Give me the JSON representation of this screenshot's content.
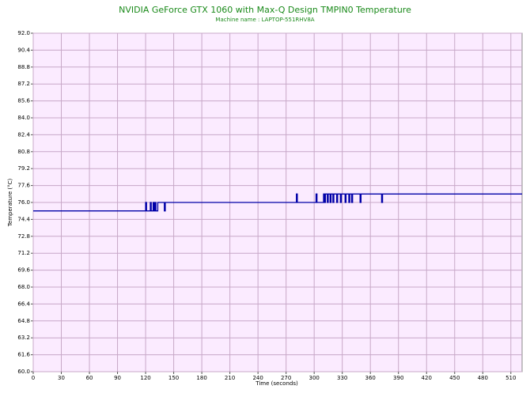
{
  "chart_data": {
    "type": "line",
    "title": "NVIDIA GeForce GTX 1060 with Max-Q Design TMPIN0 Temperature",
    "subtitle": "Machine name : LAPTOP-551RHV8A",
    "x_label": "Time (seconds)",
    "y_label": "Temperature (°C)",
    "xlim": [
      0,
      522
    ],
    "ylim": [
      60,
      92
    ],
    "xticks": [
      0,
      30,
      60,
      90,
      120,
      150,
      180,
      210,
      240,
      270,
      300,
      330,
      360,
      390,
      420,
      450,
      480,
      510
    ],
    "yticks": [
      {
        "value": 92,
        "label": "92.0"
      },
      90.4,
      88.8,
      87.2,
      85.6,
      {
        "value": 84,
        "label": "84.0"
      },
      82.4,
      80.8,
      79.2,
      77.6,
      {
        "value": 76,
        "label": "76.0"
      },
      74.4,
      72.8,
      71.2,
      69.6,
      {
        "value": 68,
        "label": "68.0"
      },
      66.4,
      64.8,
      63.2,
      61.6,
      {
        "value": 60,
        "label": "60.0"
      }
    ],
    "grid": true,
    "series": [
      {
        "name": "TMPIN0",
        "color": "#0000a8",
        "x": [
          0,
          120,
          120,
          121,
          121,
          125,
          125,
          126,
          126,
          128,
          128,
          129,
          129,
          130,
          130,
          131,
          131,
          133,
          133,
          140,
          140,
          141,
          141,
          281,
          281,
          282,
          282,
          302,
          302,
          303,
          303,
          310,
          310,
          311,
          311,
          312,
          312,
          314,
          314,
          315,
          315,
          317,
          317,
          318,
          318,
          320,
          320,
          321,
          321,
          324,
          324,
          325,
          325,
          328,
          328,
          329,
          329,
          333,
          333,
          334,
          334,
          337,
          337,
          338,
          338,
          340,
          340,
          341,
          341,
          349,
          349,
          350,
          350,
          372,
          372,
          373,
          373,
          522
        ],
        "values": [
          75.2,
          75.2,
          76.0,
          76.0,
          75.2,
          75.2,
          76.0,
          76.0,
          75.2,
          75.2,
          76.0,
          76.0,
          75.2,
          75.2,
          76.0,
          76.0,
          75.2,
          75.2,
          76.0,
          76.0,
          75.2,
          75.2,
          76.0,
          76.0,
          76.8,
          76.8,
          76.0,
          76.0,
          76.8,
          76.8,
          76.0,
          76.0,
          76.8,
          76.8,
          76.0,
          76.0,
          76.8,
          76.8,
          76.0,
          76.0,
          76.8,
          76.8,
          76.0,
          76.0,
          76.8,
          76.8,
          76.0,
          76.0,
          76.8,
          76.8,
          76.0,
          76.0,
          76.8,
          76.8,
          76.0,
          76.0,
          76.8,
          76.8,
          76.0,
          76.0,
          76.8,
          76.8,
          76.0,
          76.0,
          76.8,
          76.8,
          76.0,
          76.0,
          76.8,
          76.8,
          76.0,
          76.0,
          76.8,
          76.8,
          76.0,
          76.0,
          76.8,
          76.8
        ]
      }
    ]
  }
}
